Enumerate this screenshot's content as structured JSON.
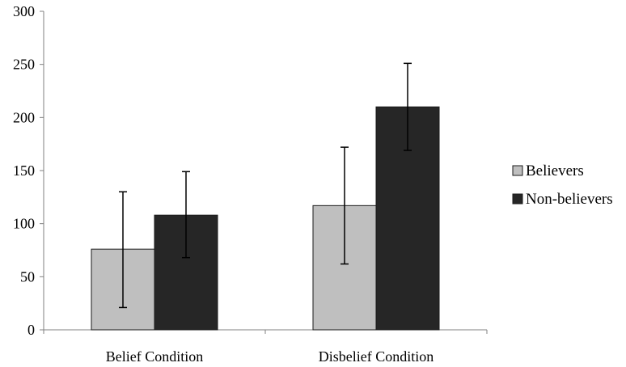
{
  "chart_data": {
    "type": "bar",
    "categories": [
      "Belief Condition",
      "Disbelief Condition"
    ],
    "series": [
      {
        "name": "Believers",
        "color": "#bfbfbf",
        "values": [
          76,
          117
        ],
        "error_low": [
          21,
          62
        ],
        "error_high": [
          130,
          172
        ]
      },
      {
        "name": "Non-believers",
        "color": "#262626",
        "values": [
          108,
          210
        ],
        "error_low": [
          68,
          169
        ],
        "error_high": [
          149,
          251
        ]
      }
    ],
    "ylim": [
      0,
      300
    ],
    "yticks": [
      "0",
      "50",
      "100",
      "150",
      "200",
      "250",
      "300"
    ],
    "grid": false,
    "legend_position": "right"
  }
}
